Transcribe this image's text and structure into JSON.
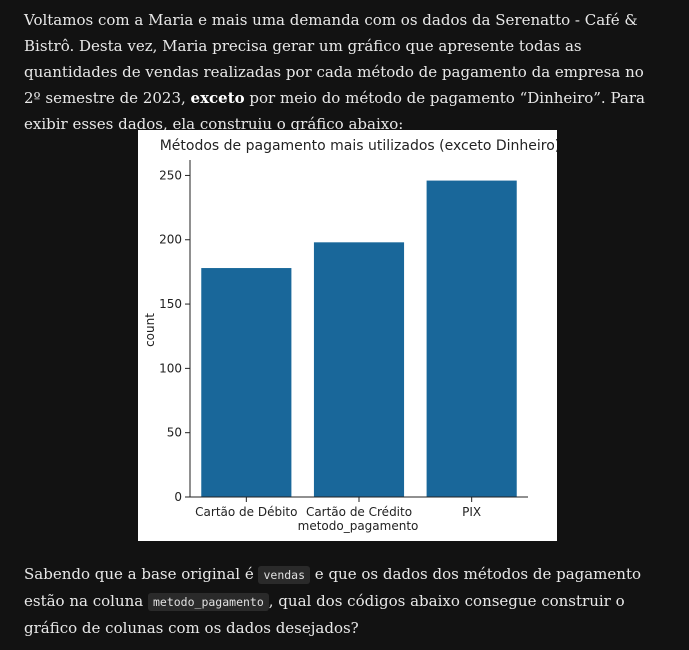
{
  "intro": {
    "part1": "Voltamos com a Maria e mais uma demanda com os dados da Serenatto - Café & Bistrô. Desta vez, Maria precisa gerar um gráfico que apresente todas as quantidades de vendas realizadas por cada método de pagamento da empresa no 2º semestre de 2023, ",
    "emphasis": "exceto",
    "part2": " por meio do método de pagamento “Dinheiro”. Para exibir esses dados, ela construiu o gráfico abaixo:"
  },
  "question": {
    "part1": "Sabendo que a base original é ",
    "code1": "vendas",
    "part2": " e que os dados dos métodos de pagamento estão na coluna ",
    "code2": "metodo_pagamento",
    "part3": ", qual dos códigos abaixo consegue construir o gráfico de colunas com os dados desejados?"
  },
  "chart_data": {
    "type": "bar",
    "title": "Métodos de pagamento mais utilizados (exceto Dinheiro)",
    "xlabel": "metodo_pagamento",
    "ylabel": "count",
    "categories": [
      "Cartão de Débito",
      "Cartão de Crédito",
      "PIX"
    ],
    "values": [
      178,
      198,
      246
    ],
    "ylim": [
      0,
      262
    ],
    "yticks": [
      0,
      50,
      100,
      150,
      200,
      250
    ],
    "bar_color": "#19679a",
    "grid": false
  }
}
